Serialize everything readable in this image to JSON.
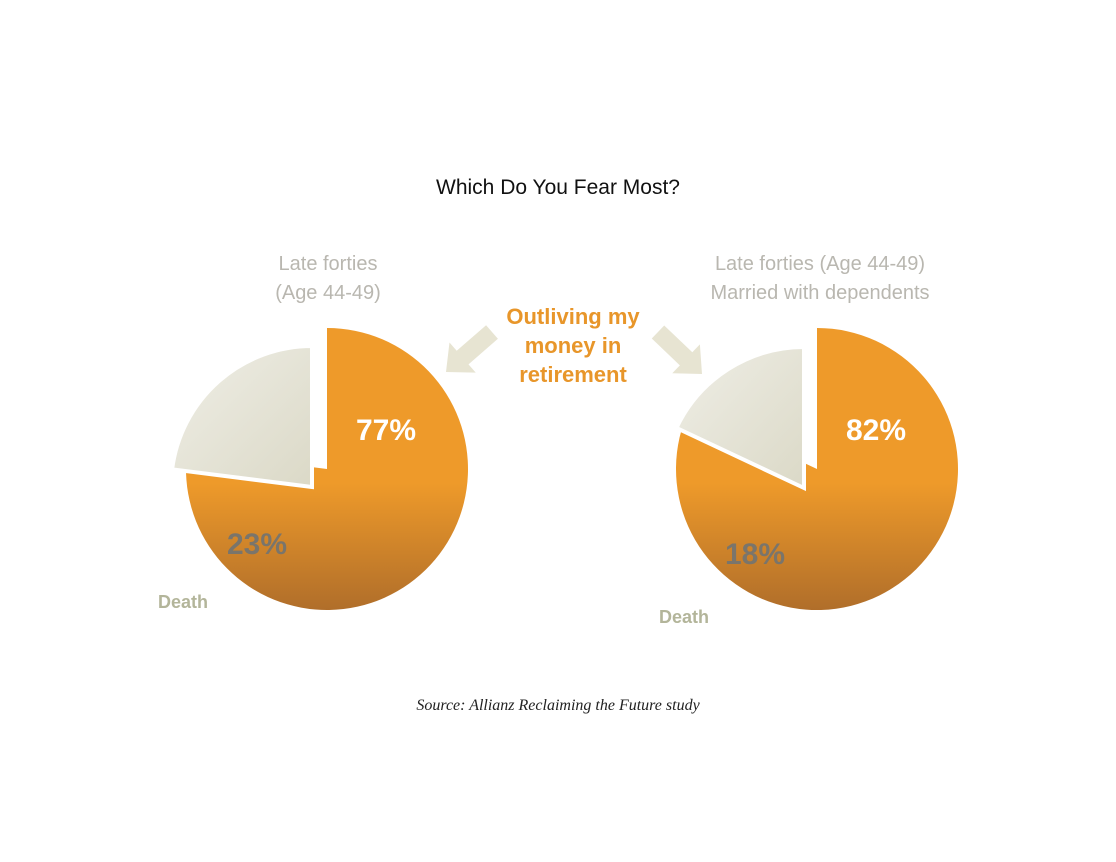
{
  "chart_data": [
    {
      "type": "pie",
      "subtitle_lines": [
        "Late forties",
        "(Age 44-49)"
      ],
      "slices": [
        {
          "label": "Outliving my money in retirement",
          "value": 77,
          "value_label": "77%"
        },
        {
          "label": "Death",
          "value": 23,
          "value_label": "23%"
        }
      ]
    },
    {
      "type": "pie",
      "subtitle_lines": [
        "Late forties (Age 44-49)",
        "Married with dependents"
      ],
      "slices": [
        {
          "label": "Outliving my money in retirement",
          "value": 82,
          "value_label": "82%"
        },
        {
          "label": "Death",
          "value": 18,
          "value_label": "18%"
        }
      ]
    }
  ],
  "title": "Which Do You Fear Most?",
  "callout_lines": [
    "Outliving my",
    "money in",
    "retirement"
  ],
  "source": "Source: Allianz Reclaiming the Future study",
  "colors": {
    "primary_slice_light": "#ee9a2a",
    "primary_slice_dark": "#b06e2a",
    "secondary_slice_light": "#efeee6",
    "secondary_slice_dark": "#dbd9c7",
    "callout_text": "#e8962a",
    "subtitle_text": "#b9b7b0",
    "death_label": "#b3b59a",
    "arrow": "#e7e4d2"
  }
}
